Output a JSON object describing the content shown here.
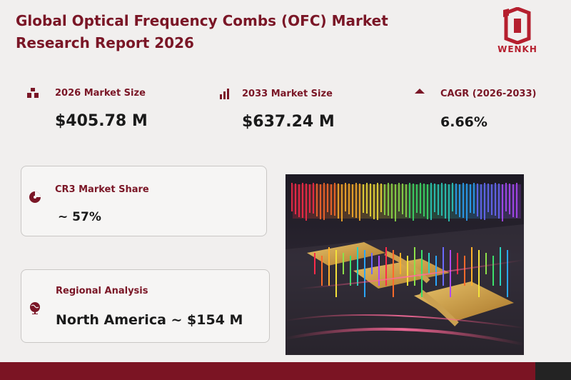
{
  "header": {
    "title_line1": "Global Optical Frequency Combs (OFC) Market",
    "title_line2": "Research Report 2026",
    "logo_text": "WENKH"
  },
  "metrics": [
    {
      "label": "2026 Market Size",
      "value": "$405.78  M",
      "icon": "bar-chart-rising-icon"
    },
    {
      "label": "2033 Market Size",
      "value": "$637.24  M",
      "icon": "bar-chart-icon"
    },
    {
      "label": "CAGR (2026-2033)",
      "value": "6.66%",
      "icon": "triangle-up-icon"
    }
  ],
  "cards": {
    "cr3": {
      "label": "CR3 Market Share",
      "value": "~ 57%",
      "icon": "pie-chart-icon"
    },
    "regional": {
      "label": "Regional Analysis",
      "value": "North America ~ $154  M",
      "icon": "globe-icon"
    }
  },
  "colors": {
    "accent": "#7a1626",
    "logo": "#b51f2e",
    "background": "#f1efee",
    "footer": "#7b1423",
    "footer_dark": "#232323"
  }
}
